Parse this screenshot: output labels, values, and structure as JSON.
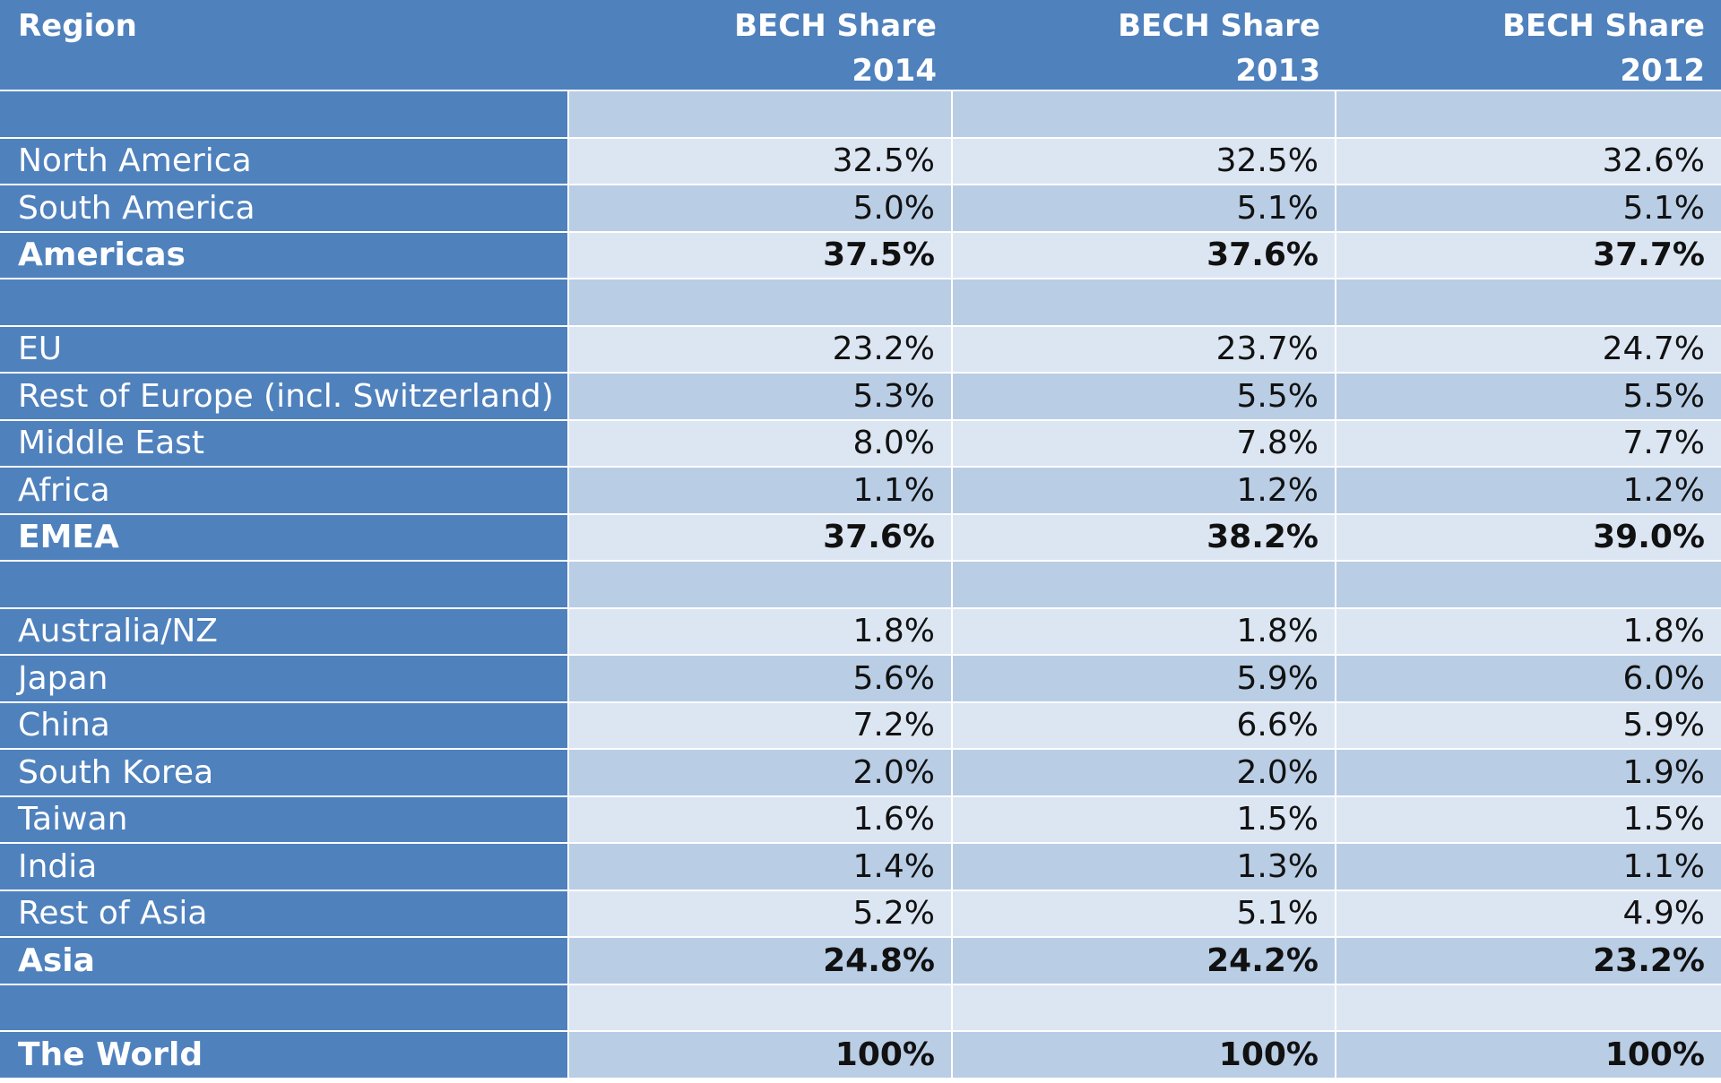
{
  "chart_data": {
    "type": "table",
    "columns": [
      "Region",
      "BECH Share 2014",
      "BECH Share 2013",
      "BECH Share 2012"
    ],
    "header": {
      "region": "Region",
      "years": [
        {
          "line1": "BECH Share",
          "line2": "2014"
        },
        {
          "line1": "BECH Share",
          "line2": "2013"
        },
        {
          "line1": "BECH Share",
          "line2": "2012"
        }
      ]
    },
    "rows": [
      {
        "region": "",
        "values": [
          "",
          "",
          ""
        ],
        "bold": false
      },
      {
        "region": "North America",
        "values": [
          "32.5%",
          "32.5%",
          "32.6%"
        ],
        "bold": false
      },
      {
        "region": "South America",
        "values": [
          "5.0%",
          "5.1%",
          "5.1%"
        ],
        "bold": false
      },
      {
        "region": "Americas",
        "values": [
          "37.5%",
          "37.6%",
          "37.7%"
        ],
        "bold": true
      },
      {
        "region": "",
        "values": [
          "",
          "",
          ""
        ],
        "bold": false
      },
      {
        "region": "EU",
        "values": [
          "23.2%",
          "23.7%",
          "24.7%"
        ],
        "bold": false
      },
      {
        "region": "Rest of Europe (incl. Switzerland)",
        "values": [
          "5.3%",
          "5.5%",
          "5.5%"
        ],
        "bold": false
      },
      {
        "region": "Middle East",
        "values": [
          "8.0%",
          "7.8%",
          "7.7%"
        ],
        "bold": false
      },
      {
        "region": "Africa",
        "values": [
          "1.1%",
          "1.2%",
          "1.2%"
        ],
        "bold": false
      },
      {
        "region": "EMEA",
        "values": [
          "37.6%",
          "38.2%",
          "39.0%"
        ],
        "bold": true
      },
      {
        "region": "",
        "values": [
          "",
          "",
          ""
        ],
        "bold": false
      },
      {
        "region": "Australia/NZ",
        "values": [
          "1.8%",
          "1.8%",
          "1.8%"
        ],
        "bold": false
      },
      {
        "region": "Japan",
        "values": [
          "5.6%",
          "5.9%",
          "6.0%"
        ],
        "bold": false
      },
      {
        "region": "China",
        "values": [
          "7.2%",
          "6.6%",
          "5.9%"
        ],
        "bold": false
      },
      {
        "region": "South Korea",
        "values": [
          "2.0%",
          "2.0%",
          "1.9%"
        ],
        "bold": false
      },
      {
        "region": "Taiwan",
        "values": [
          "1.6%",
          "1.5%",
          "1.5%"
        ],
        "bold": false
      },
      {
        "region": "India",
        "values": [
          "1.4%",
          "1.3%",
          "1.1%"
        ],
        "bold": false
      },
      {
        "region": "Rest of Asia",
        "values": [
          "5.2%",
          "5.1%",
          "4.9%"
        ],
        "bold": false
      },
      {
        "region": "Asia",
        "values": [
          "24.8%",
          "24.2%",
          "23.2%"
        ],
        "bold": true
      },
      {
        "region": "",
        "values": [
          "",
          "",
          ""
        ],
        "bold": false
      },
      {
        "region": "The World",
        "values": [
          "100%",
          "100%",
          "100%"
        ],
        "bold": true
      }
    ]
  },
  "colors": {
    "header_blue": "#4f81bd",
    "band_light": "#dce6f2",
    "band_dark": "#b9cde5",
    "label_text": "#ffffff",
    "value_text": "#111111"
  }
}
